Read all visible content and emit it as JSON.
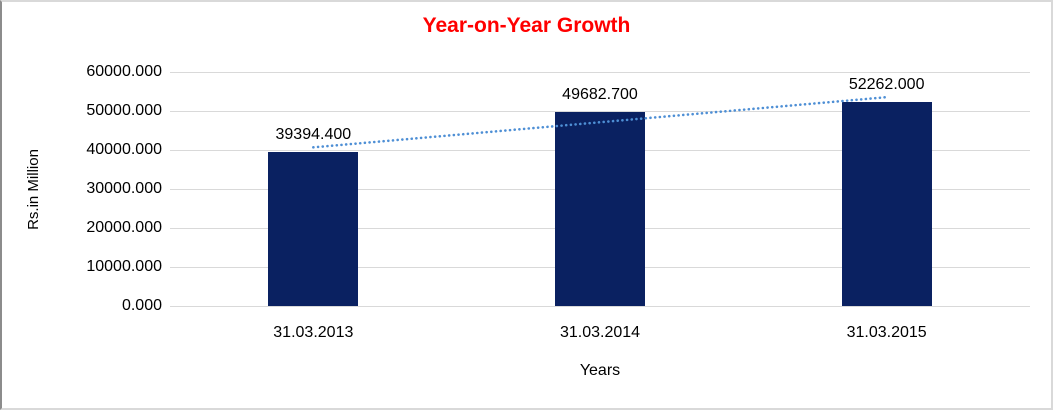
{
  "chart_data": {
    "type": "bar",
    "title": "Year-on-Year Growth",
    "xlabel": "Years",
    "ylabel": "Rs.in Million",
    "categories": [
      "31.03.2013",
      "31.03.2014",
      "31.03.2015"
    ],
    "values": [
      39394.4,
      49682.7,
      52262.0
    ],
    "value_labels": [
      "39394.400",
      "49682.700",
      "52262.000"
    ],
    "ylim": [
      0,
      60000
    ],
    "ytick_step": 10000,
    "ytick_labels": [
      "0.000",
      "10000.000",
      "20000.000",
      "30000.000",
      "40000.000",
      "50000.000",
      "60000.000"
    ],
    "grid": true,
    "legend": "none",
    "trendline": {
      "type": "linear",
      "style": "dotted"
    },
    "colors": {
      "bar": "#0A2161",
      "title": "#FF0000",
      "gridline": "#D9D9D9",
      "trendline": "#4E8FD5",
      "text": "#000000"
    }
  }
}
